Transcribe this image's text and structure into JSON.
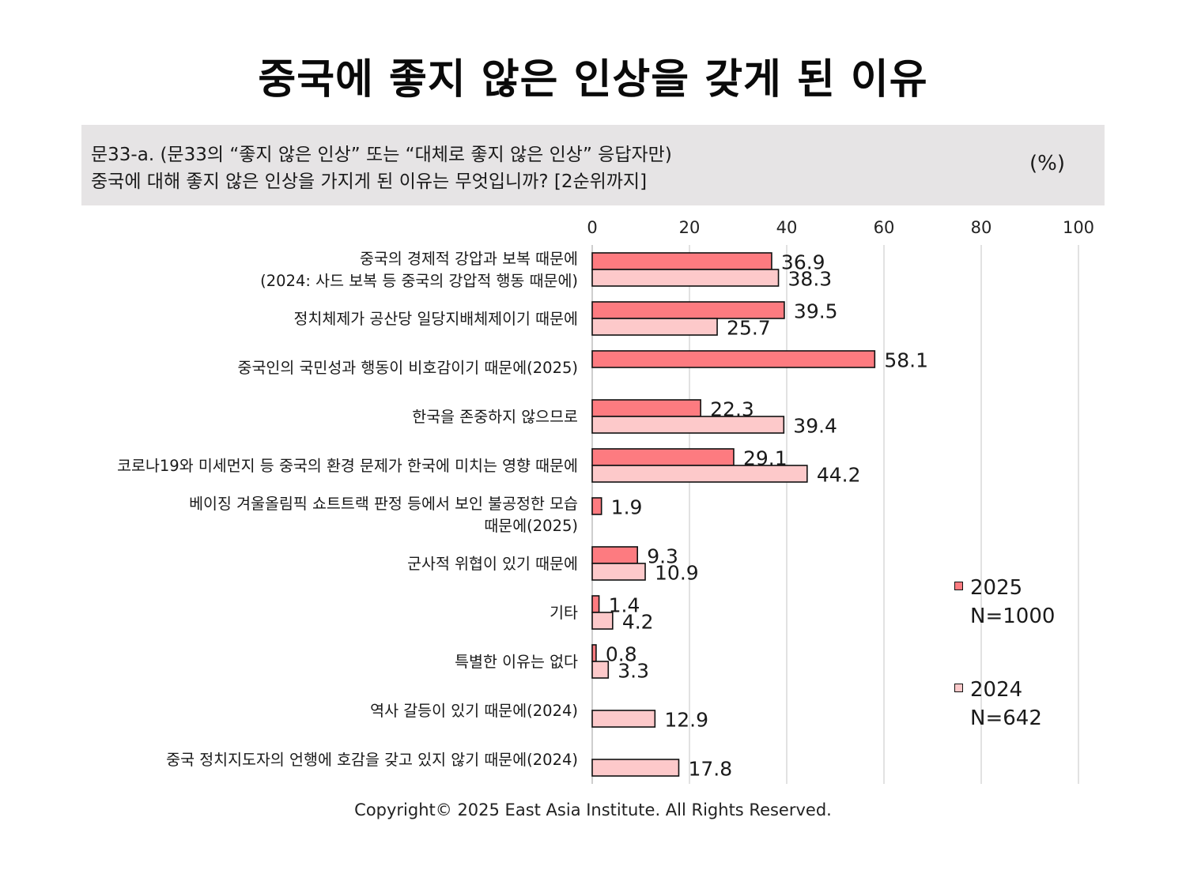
{
  "title": "중국에 좋지 않은 인상을 갖게 된 이유",
  "question": {
    "line1": "문33-a. (문33의 “좋지 않은 인상” 또는 “대체로 좋지 않은 인상” 응답자만)",
    "line2": "중국에 대해 좋지 않은 인상을 가지게 된 이유는 무엇입니까? [2순위까지]",
    "unit": "(%)"
  },
  "copyright": "Copyright© 2025 East Asia Institute. All Rights Reserved.",
  "legend": [
    {
      "label": "2025",
      "sub": "N=1000"
    },
    {
      "label": "2024",
      "sub": "N=642"
    }
  ],
  "colors": {
    "series_2025": "#fd7b80",
    "series_2024": "#fdc9ca",
    "grid": "#d9d9d9",
    "bar_border": "#111111"
  },
  "chart_data": {
    "type": "bar",
    "orientation": "horizontal",
    "xlim": [
      0,
      100
    ],
    "x_ticks": [
      0,
      20,
      40,
      60,
      80,
      100
    ],
    "grid": true,
    "legend_position": "right",
    "categories": [
      [
        "중국의 경제적 강압과 보복 때문에",
        "(2024: 사드 보복 등 중국의 강압적 행동 때문에)"
      ],
      [
        "정치체제가 공산당 일당지배체제이기 때문에"
      ],
      [
        "중국인의 국민성과 행동이 비호감이기 때문에(2025)"
      ],
      [
        "한국을 존중하지 않으므로"
      ],
      [
        "코로나19와 미세먼지 등 중국의 환경 문제가 한국에 미치는 영향 때문에"
      ],
      [
        "베이징 겨울올림픽 쇼트트랙 판정 등에서 보인 불공정한 모습",
        "때문에(2025)"
      ],
      [
        "군사적 위협이 있기 때문에"
      ],
      [
        "기타"
      ],
      [
        "특별한 이유는 없다"
      ],
      [
        "역사 갈등이 있기 때문에(2024)"
      ],
      [
        "중국 정치지도자의 언행에 호감을 갖고 있지 않기 때문에(2024)"
      ]
    ],
    "series": [
      {
        "name": "2025",
        "values": [
          36.9,
          39.5,
          58.1,
          22.3,
          29.1,
          1.9,
          9.3,
          1.4,
          0.8,
          null,
          null
        ]
      },
      {
        "name": "2024",
        "values": [
          38.3,
          25.7,
          null,
          39.4,
          44.2,
          null,
          10.9,
          4.2,
          3.3,
          12.9,
          17.8
        ]
      }
    ]
  }
}
